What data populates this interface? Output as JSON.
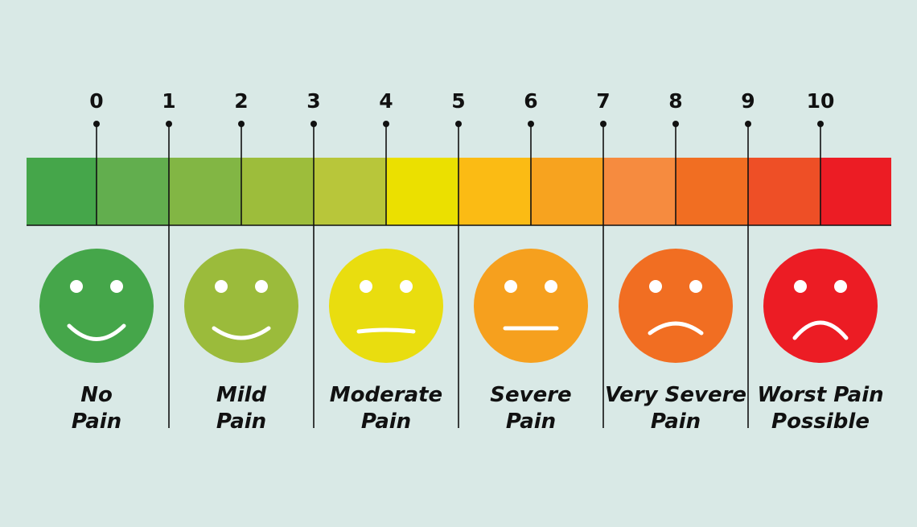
{
  "scale": {
    "ticks": [
      "0",
      "1",
      "2",
      "3",
      "4",
      "5",
      "6",
      "7",
      "8",
      "9",
      "10"
    ]
  },
  "faces": [
    {
      "label": [
        "No",
        "Pain"
      ]
    },
    {
      "label": [
        "Mild",
        "Pain"
      ]
    },
    {
      "label": [
        "Moderate",
        "Pain"
      ]
    },
    {
      "label": [
        "Severe",
        "Pain"
      ]
    },
    {
      "label": [
        "Very Severe",
        "Pain"
      ]
    },
    {
      "label": [
        "Worst Pain",
        "Possible"
      ]
    }
  ]
}
